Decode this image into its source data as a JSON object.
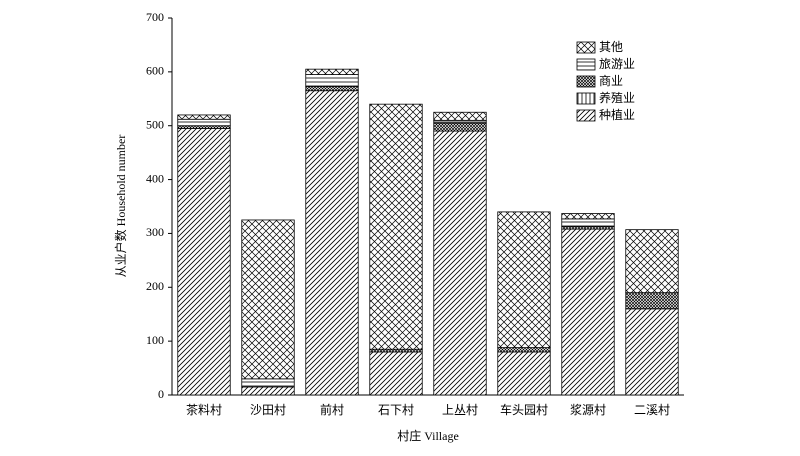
{
  "chart_data": {
    "type": "stacked-bar",
    "categories": [
      "茶料村",
      "沙田村",
      "前村",
      "石下村",
      "上丛村",
      "车头园村",
      "浆源村",
      "二溪村"
    ],
    "series": [
      {
        "name": "种植业",
        "color": "#000000",
        "hatch": "diagonal",
        "values": [
          495,
          15,
          565,
          80,
          490,
          80,
          308,
          160
        ]
      },
      {
        "name": "养殖业",
        "color": "#000000",
        "hatch": "vertical",
        "values": [
          0,
          0,
          0,
          0,
          0,
          0,
          0,
          0
        ]
      },
      {
        "name": "商业",
        "color": "#000000",
        "hatch": "crossdense",
        "values": [
          5,
          0,
          8,
          5,
          15,
          8,
          5,
          30
        ]
      },
      {
        "name": "旅游业",
        "color": "#000000",
        "hatch": "horizontal",
        "values": [
          12,
          15,
          22,
          0,
          5,
          0,
          14,
          0
        ]
      },
      {
        "name": "其他",
        "color": "#000000",
        "hatch": "cross",
        "values": [
          8,
          295,
          10,
          455,
          15,
          252,
          10,
          117
        ]
      }
    ],
    "ylim": [
      0,
      700
    ],
    "yticks": [
      0,
      100,
      200,
      300,
      400,
      500,
      600,
      700
    ],
    "xlabel": "村庄 Village",
    "ylabel": "从业户数 Household number",
    "legend": "upper-right"
  }
}
